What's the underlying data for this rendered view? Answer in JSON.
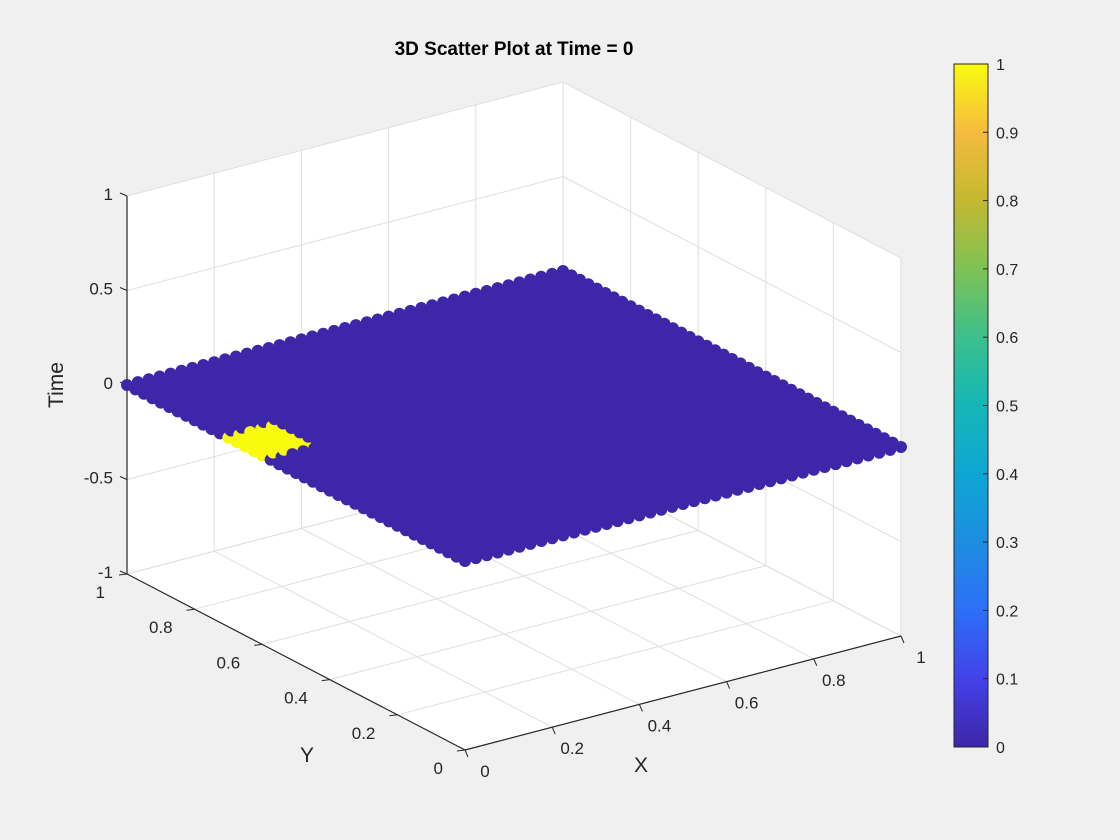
{
  "chart_data": {
    "type": "scatter",
    "title": "3D Scatter Plot at Time = 0",
    "xlabel": "X",
    "ylabel": "Y",
    "zlabel": "Time",
    "xlim": [
      0,
      1
    ],
    "ylim": [
      0,
      1
    ],
    "zlim": [
      -1,
      1
    ],
    "x_ticks": [
      "0",
      "0.2",
      "0.4",
      "0.6",
      "0.8",
      "1"
    ],
    "y_ticks": [
      "0",
      "0.2",
      "0.4",
      "0.6",
      "0.8",
      "1"
    ],
    "z_ticks": [
      "-1",
      "-0.5",
      "0",
      "0.5",
      "1"
    ],
    "grid": true,
    "colormap": "parula",
    "colorbar": {
      "range": [
        0,
        1
      ],
      "ticks": [
        "0",
        "0.1",
        "0.2",
        "0.3",
        "0.4",
        "0.5",
        "0.6",
        "0.7",
        "0.8",
        "0.9",
        "1"
      ]
    },
    "series": [
      {
        "description": "grid of points in the plane Time = 0 spanning X 0-1 and Y 0-1; all color values 0",
        "x_range": [
          0,
          1
        ],
        "y_range": [
          0,
          1
        ],
        "z": 0,
        "value": 0,
        "color": "#3e26a8"
      },
      {
        "description": "small patch of points with color value 1",
        "x_range": [
          0,
          0.1
        ],
        "y_range": [
          0.6,
          0.7
        ],
        "z": 0,
        "value": 1,
        "color": "#f9fb0e"
      }
    ]
  }
}
